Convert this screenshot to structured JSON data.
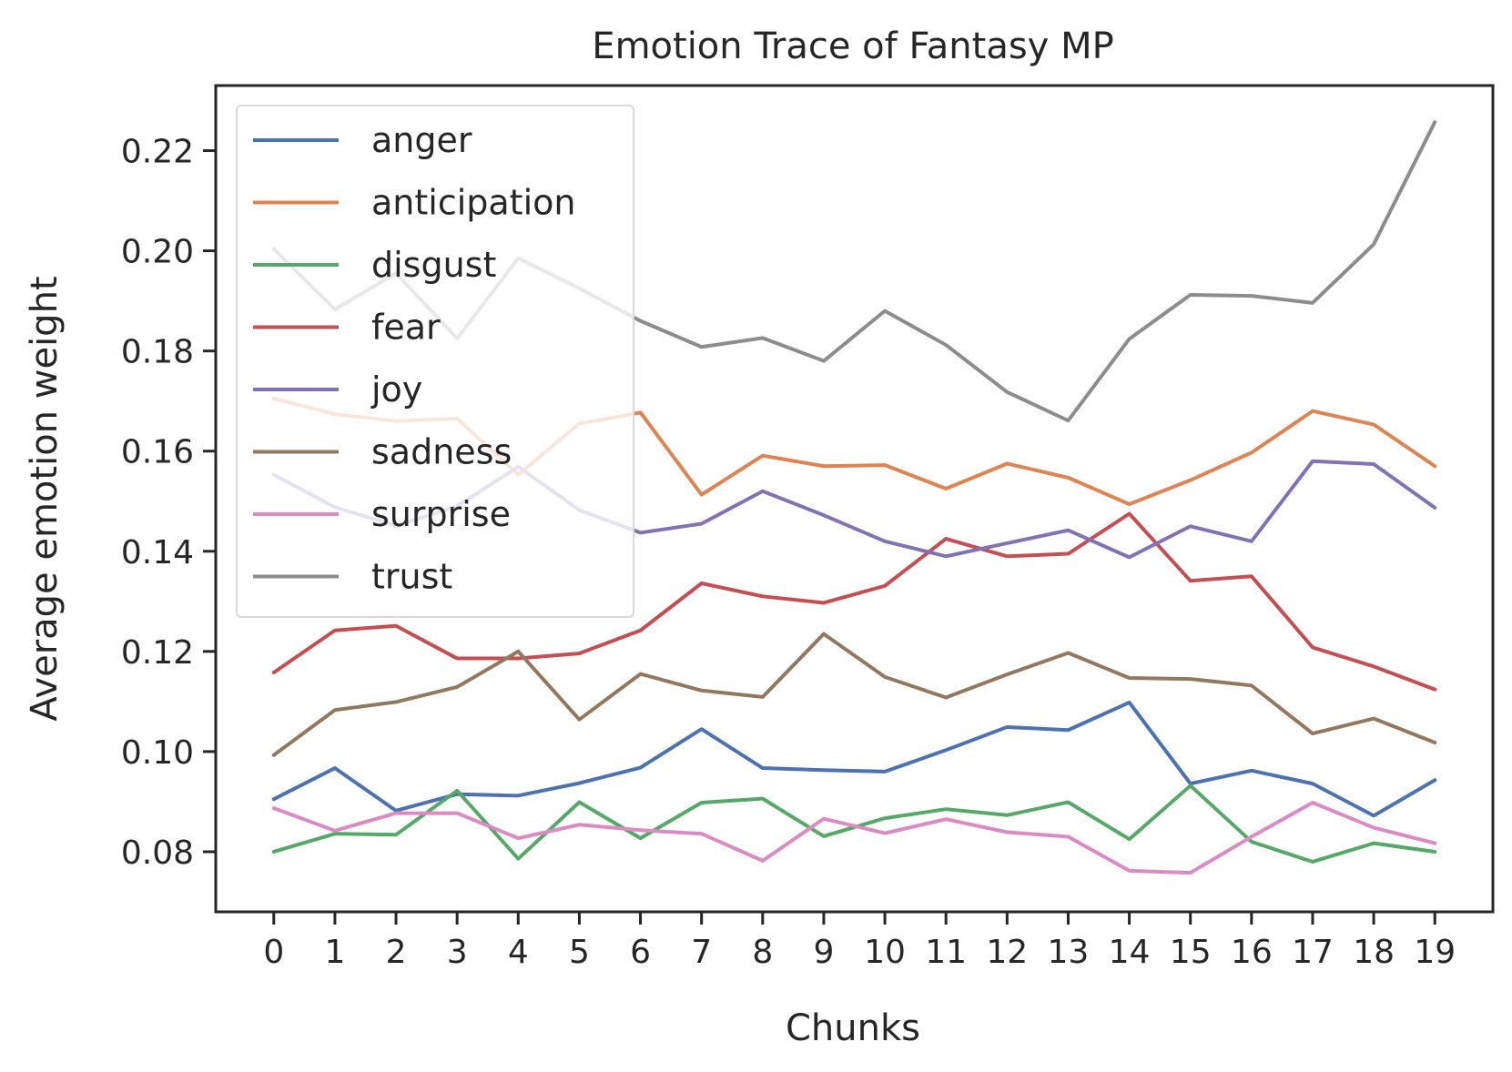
{
  "chart_data": {
    "type": "line",
    "title": "Emotion Trace of Fantasy MP",
    "xlabel": "Chunks",
    "ylabel": "Average emotion weight",
    "x": [
      0,
      1,
      2,
      3,
      4,
      5,
      6,
      7,
      8,
      9,
      10,
      11,
      12,
      13,
      14,
      15,
      16,
      17,
      18,
      19
    ],
    "xlim": [
      -0.95,
      19.95
    ],
    "ylim": [
      0.068,
      0.233
    ],
    "yticks": [
      0.08,
      0.1,
      0.12,
      0.14,
      0.16,
      0.18,
      0.2,
      0.22
    ],
    "ytick_labels": [
      "0.08",
      "0.10",
      "0.12",
      "0.14",
      "0.16",
      "0.18",
      "0.20",
      "0.22"
    ],
    "xtick_labels": [
      "0",
      "1",
      "2",
      "3",
      "4",
      "5",
      "6",
      "7",
      "8",
      "9",
      "10",
      "11",
      "12",
      "13",
      "14",
      "15",
      "16",
      "17",
      "18",
      "19"
    ],
    "grid": false,
    "legend": "upper-left",
    "series": [
      {
        "name": "anger",
        "color": "#4c72b0",
        "values": [
          0.0905,
          0.0967,
          0.0882,
          0.0915,
          0.0912,
          0.0937,
          0.0968,
          0.1045,
          0.0967,
          0.0963,
          0.096,
          0.1003,
          0.1049,
          0.1043,
          0.1098,
          0.0936,
          0.0962,
          0.0936,
          0.0872,
          0.0943
        ]
      },
      {
        "name": "anticipation",
        "color": "#dd8452",
        "values": [
          0.1705,
          0.1674,
          0.166,
          0.1665,
          0.1553,
          0.1655,
          0.1677,
          0.1513,
          0.1591,
          0.157,
          0.1572,
          0.1525,
          0.1575,
          0.1547,
          0.1494,
          0.1542,
          0.1597,
          0.168,
          0.1653,
          0.157
        ]
      },
      {
        "name": "disgust",
        "color": "#55a868",
        "values": [
          0.08,
          0.0836,
          0.0834,
          0.0922,
          0.0786,
          0.0899,
          0.0827,
          0.0898,
          0.0906,
          0.0831,
          0.0867,
          0.0885,
          0.0873,
          0.0899,
          0.0825,
          0.0932,
          0.082,
          0.078,
          0.0817,
          0.08
        ]
      },
      {
        "name": "fear",
        "color": "#c44e52",
        "values": [
          0.1158,
          0.1242,
          0.1251,
          0.1186,
          0.1186,
          0.1196,
          0.1242,
          0.1336,
          0.131,
          0.1297,
          0.1331,
          0.1425,
          0.139,
          0.1395,
          0.1475,
          0.1341,
          0.135,
          0.1208,
          0.117,
          0.1124
        ]
      },
      {
        "name": "joy",
        "color": "#8172b3",
        "values": [
          0.1553,
          0.1488,
          0.1451,
          0.149,
          0.1569,
          0.1482,
          0.1437,
          0.1455,
          0.152,
          0.1472,
          0.142,
          0.139,
          0.1416,
          0.1442,
          0.1388,
          0.145,
          0.142,
          0.158,
          0.1574,
          0.1487
        ]
      },
      {
        "name": "sadness",
        "color": "#937860",
        "values": [
          0.0993,
          0.1083,
          0.1099,
          0.1129,
          0.12,
          0.1064,
          0.1155,
          0.1122,
          0.1109,
          0.1235,
          0.1149,
          0.1108,
          0.1154,
          0.1197,
          0.1147,
          0.1145,
          0.1132,
          0.1036,
          0.1066,
          0.1018
        ]
      },
      {
        "name": "surprise",
        "color": "#da8bc3",
        "values": [
          0.0887,
          0.0842,
          0.0877,
          0.0877,
          0.0827,
          0.0854,
          0.0843,
          0.0836,
          0.0782,
          0.0866,
          0.0837,
          0.0865,
          0.0839,
          0.083,
          0.0762,
          0.0758,
          0.083,
          0.0898,
          0.0848,
          0.0817
        ]
      },
      {
        "name": "trust",
        "color": "#8c8c8c",
        "values": [
          0.2004,
          0.1883,
          0.1955,
          0.1825,
          0.1985,
          0.1925,
          0.186,
          0.1808,
          0.1826,
          0.178,
          0.188,
          0.1812,
          0.1718,
          0.1661,
          0.1824,
          0.1912,
          0.191,
          0.1896,
          0.2013,
          0.2257
        ]
      }
    ]
  }
}
